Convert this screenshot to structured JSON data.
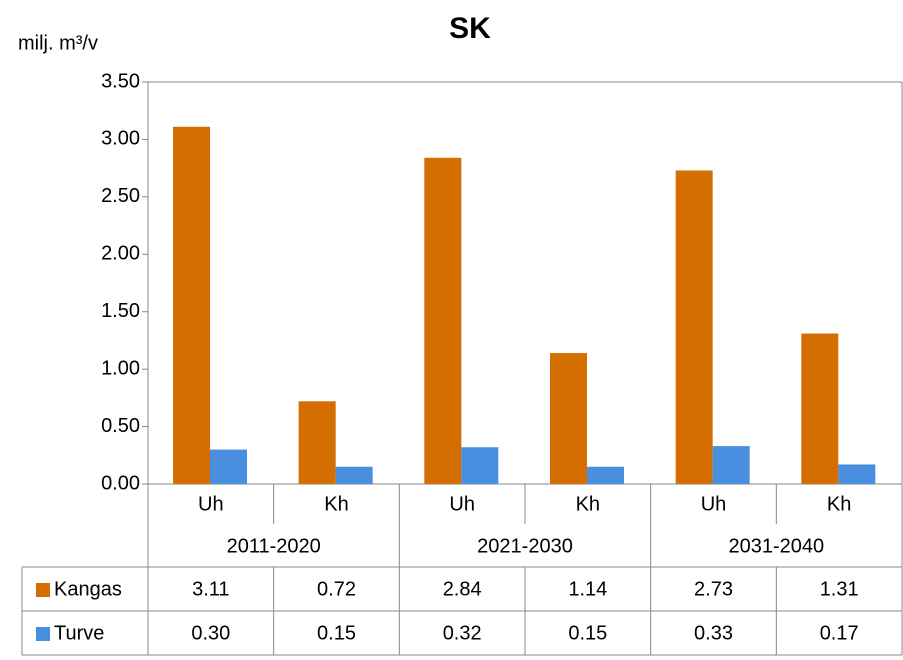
{
  "chart_data": {
    "type": "bar",
    "title": "SK",
    "y_label": "milj. m³/v",
    "categories": [
      "Uh",
      "Kh",
      "Uh",
      "Kh",
      "Uh",
      "Kh"
    ],
    "groups": [
      "2011-2020",
      "2021-2030",
      "2031-2040"
    ],
    "series": [
      {
        "name": "Kangas",
        "color": "#d46e00",
        "values": [
          3.11,
          0.72,
          2.84,
          1.14,
          2.73,
          1.31
        ],
        "value_labels": [
          "3.11",
          "0.72",
          "2.84",
          "1.14",
          "2.73",
          "1.31"
        ]
      },
      {
        "name": "Turve",
        "color": "#4a8ee0",
        "values": [
          0.3,
          0.15,
          0.32,
          0.15,
          0.33,
          0.17
        ],
        "value_labels": [
          "0.30",
          "0.15",
          "0.32",
          "0.15",
          "0.33",
          "0.17"
        ]
      }
    ],
    "ylim": [
      0,
      3.5
    ],
    "yticks": [
      {
        "value": 0,
        "label": "0.00"
      },
      {
        "value": 0.5,
        "label": "0.50"
      },
      {
        "value": 1,
        "label": "1.00"
      },
      {
        "value": 1.5,
        "label": "1.50"
      },
      {
        "value": 2,
        "label": "2.00"
      },
      {
        "value": 2.5,
        "label": "2.50"
      },
      {
        "value": 3,
        "label": "3.00"
      },
      {
        "value": 3.5,
        "label": "3.50"
      }
    ],
    "grid": false
  }
}
